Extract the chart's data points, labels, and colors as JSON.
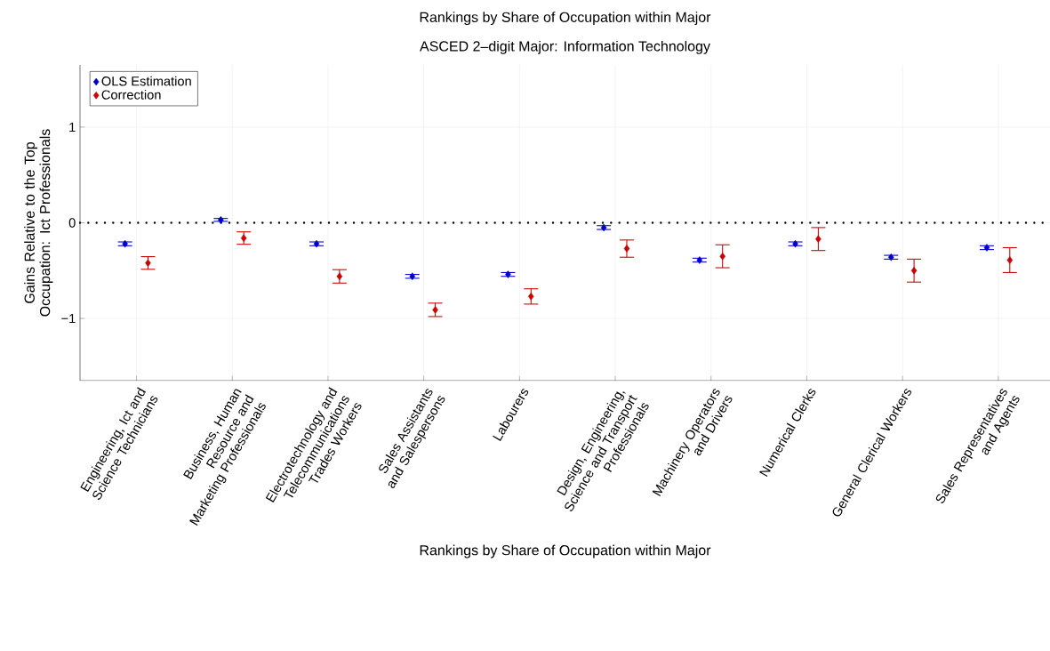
{
  "chart_data": {
    "type": "scatter",
    "title": "Rankings by Share of Occupation within Major",
    "subtitle": "ASCED 2–digit Major: Information Technology",
    "xlabel": "Rankings by Share of Occupation within Major",
    "ylabel": "Gains Relative to the Top Occupation: Ict Professionals",
    "categories": [
      "Engineering, Ict and Science Technicians",
      "Business, Human Resource and Marketing Professionals",
      "Electrotechnology and Telecommunications Trades Workers",
      "Sales Assistants and Salespersons",
      "Labourers",
      "Design, Engineering, Science and Transport Professionals",
      "Machinery Operators and Drivers",
      "Numerical Clerks",
      "General Clerical Workers",
      "Sales Representatives and Agents"
    ],
    "series": [
      {
        "name": "OLS Estimation",
        "color": "#0000cc",
        "values": [
          -0.22,
          0.03,
          -0.22,
          -0.56,
          -0.54,
          -0.05,
          -0.39,
          -0.22,
          -0.36,
          -0.26
        ],
        "errors": [
          0.02,
          0.015,
          0.02,
          0.02,
          0.02,
          0.02,
          0.02,
          0.02,
          0.02,
          0.02
        ]
      },
      {
        "name": "Correction",
        "color": "#cc0000",
        "values": [
          -0.42,
          -0.16,
          -0.56,
          -0.91,
          -0.77,
          -0.27,
          -0.35,
          -0.17,
          -0.5,
          -0.39
        ],
        "errors": [
          0.066,
          0.065,
          0.07,
          0.07,
          0.08,
          0.09,
          0.12,
          0.12,
          0.12,
          0.13
        ]
      }
    ],
    "ylim": [
      -1.65,
      1.65
    ],
    "yticks": [
      {
        "value": -1,
        "label": "−1"
      },
      0,
      1
    ],
    "ref_lines": [
      {
        "axis": "y",
        "value": 0,
        "color": "#000000",
        "line_style": "dotted"
      }
    ],
    "grid": true,
    "legend": "top left",
    "marker": "diamond"
  }
}
